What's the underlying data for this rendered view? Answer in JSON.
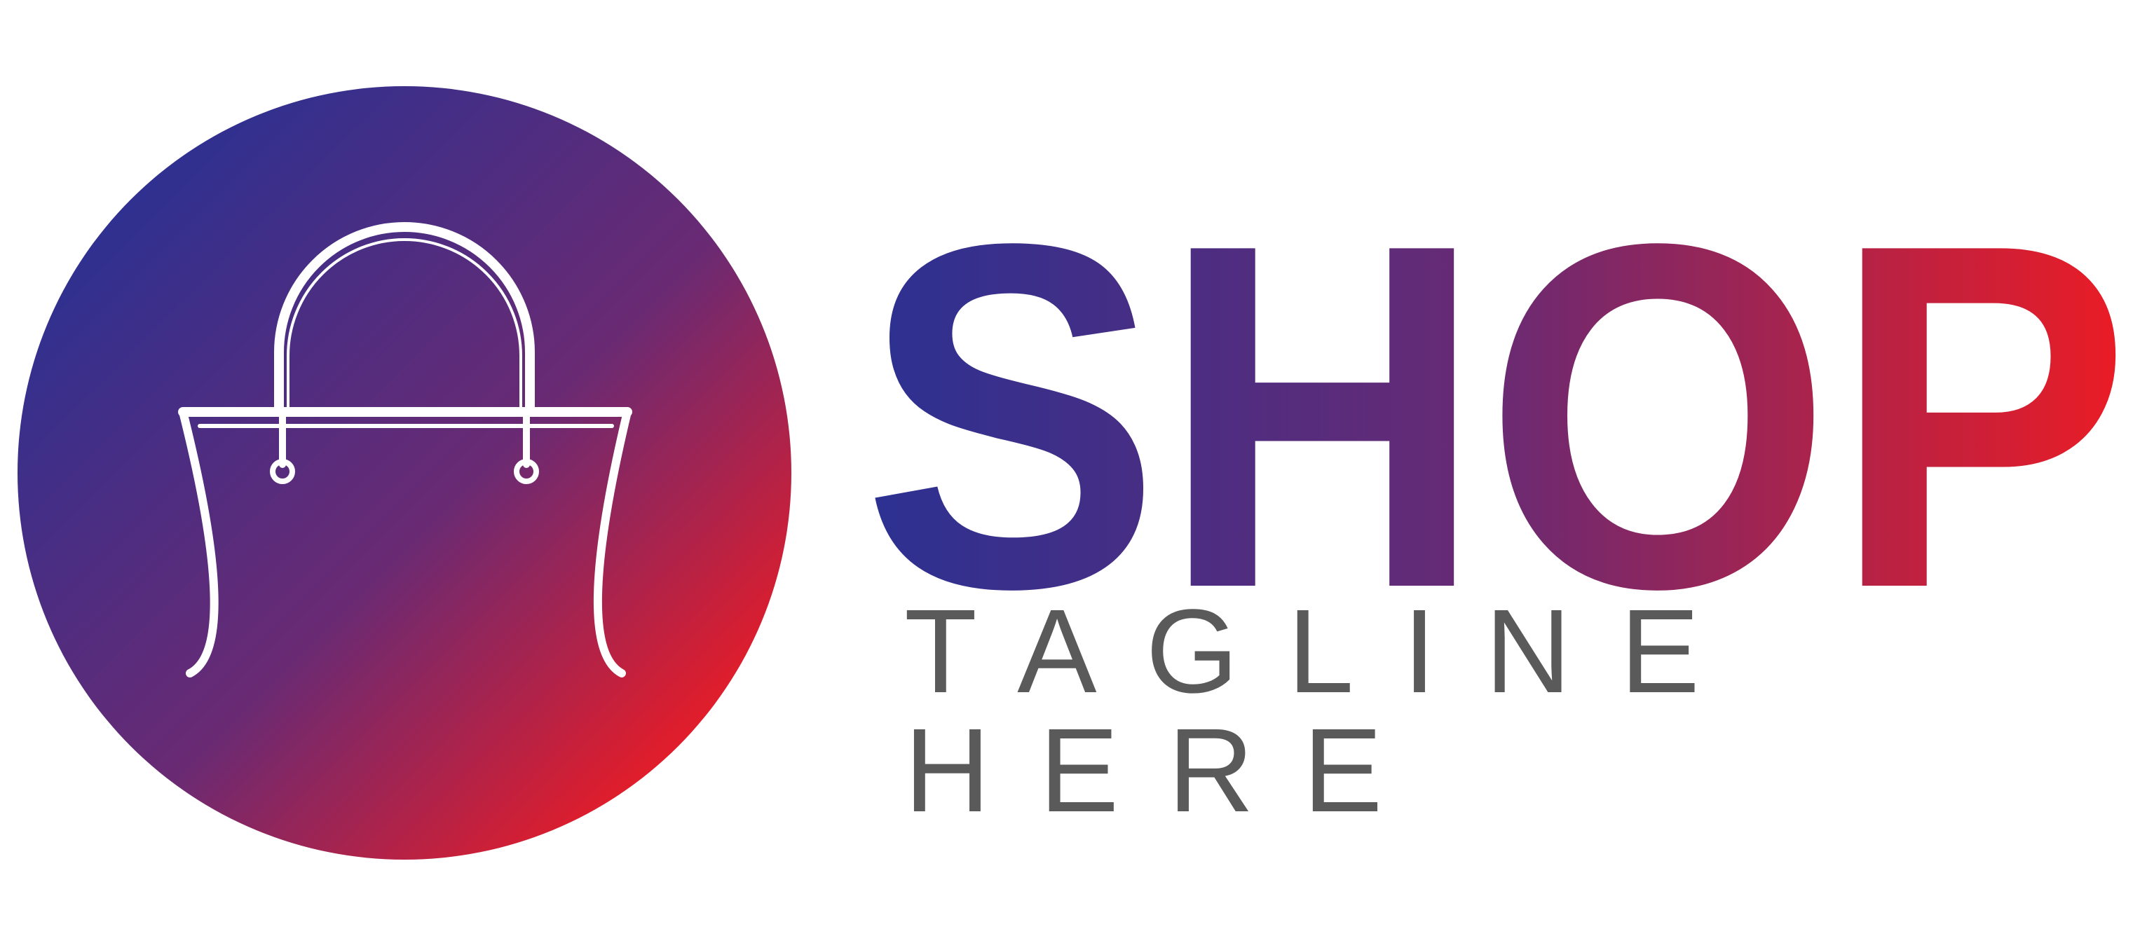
{
  "logo": {
    "brand_name": "SHOP",
    "tagline": "TAGLINE HERE",
    "icon": "shopping-bag-icon",
    "colors": {
      "gradient_start": "#2b3192",
      "gradient_end": "#ec1c24",
      "tagline": "#5a5a5a",
      "bag_stroke": "#ffffff",
      "background": "#ffffff"
    }
  }
}
